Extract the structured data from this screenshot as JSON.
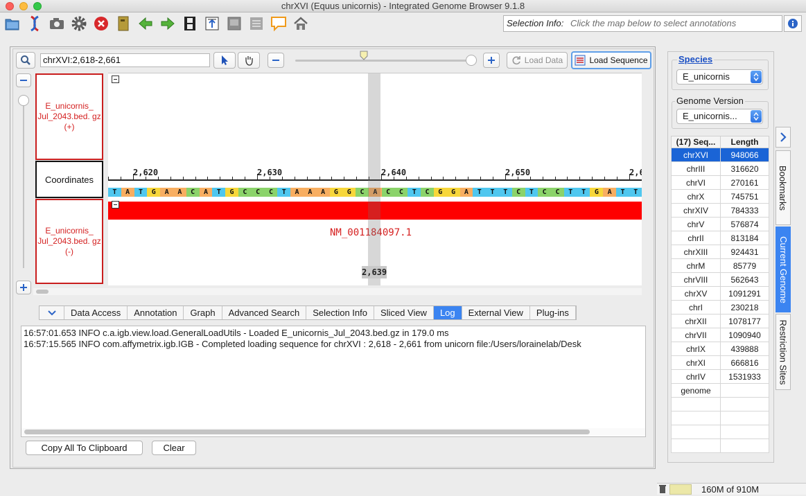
{
  "window": {
    "title": "chrXVI  (Equus unicornis) - Integrated Genome Browser 9.1.8"
  },
  "toolbar": {
    "icons": [
      "open-folder-icon",
      "dna-icon",
      "camera-icon",
      "gear-icon",
      "stop-icon",
      "book-icon",
      "back-arrow-icon",
      "forward-arrow-icon",
      "film-icon",
      "export-icon",
      "panel-icon",
      "panel-lines-icon",
      "speech-bubble-icon",
      "home-icon"
    ],
    "selection_info_label": "Selection Info:",
    "selection_info_placeholder": "Click the map below to select annotations"
  },
  "view": {
    "location": "chrXVI:2,618-2,661",
    "zoom_fraction": 0.38,
    "load_data_label": "Load Data",
    "load_sequence_label": "Load Sequence"
  },
  "tracks": {
    "plus_name": "E_unicornis_ Jul_2043.bed. gz (+)",
    "coordinates_name": "Coordinates",
    "minus_name": "E_unicornis_ Jul_2043.bed. gz (-)",
    "ruler_ticks": [
      "2,620",
      "2,630",
      "2,640",
      "2,650",
      "2,6"
    ],
    "sequence": "TATGAACATGCCCTAAAGGCACCTCGGATTTCTCCTTGATTAG",
    "feature_label": "NM_001184097.1",
    "cursor_position": "2,639"
  },
  "colors": {
    "A": "#f8ae61",
    "T": "#4fc7ef",
    "G": "#f7d73a",
    "C": "#8bd36a",
    "feature": "#fe0000",
    "accent": "#3b84f1"
  },
  "tabs": [
    {
      "label": "Data Access",
      "selected": false
    },
    {
      "label": "Annotation",
      "selected": false
    },
    {
      "label": "Graph",
      "selected": false
    },
    {
      "label": "Advanced Search",
      "selected": false
    },
    {
      "label": "Selection Info",
      "selected": false
    },
    {
      "label": "Sliced View",
      "selected": false
    },
    {
      "label": "Log",
      "selected": true
    },
    {
      "label": "External View",
      "selected": false
    },
    {
      "label": "Plug-ins",
      "selected": false
    }
  ],
  "log": {
    "lines": [
      "16:57:01.653 INFO  c.a.igb.view.load.GeneralLoadUtils - Loaded E_unicornis_Jul_2043.bed.gz in 179.0 ms",
      "16:57:15.565 INFO  com.affymetrix.igb.IGB - Completed loading sequence for chrXVI : 2,618 - 2,661 from unicorn file:/Users/lorainelab/Desk"
    ],
    "copy_label": "Copy All To Clipboard",
    "clear_label": "Clear"
  },
  "right_panel": {
    "species_title": "Species",
    "species_value": "E_unicornis",
    "genome_version_title": "Genome Version",
    "genome_version_value": "E_unicornis...",
    "table_headers": [
      "(17) Seq...",
      "Length"
    ],
    "rows": [
      [
        "chrXVI",
        "948066"
      ],
      [
        "chrIII",
        "316620"
      ],
      [
        "chrVI",
        "270161"
      ],
      [
        "chrX",
        "745751"
      ],
      [
        "chrXIV",
        "784333"
      ],
      [
        "chrV",
        "576874"
      ],
      [
        "chrII",
        "813184"
      ],
      [
        "chrXIII",
        "924431"
      ],
      [
        "chrM",
        "85779"
      ],
      [
        "chrVIII",
        "562643"
      ],
      [
        "chrXV",
        "1091291"
      ],
      [
        "chrI",
        "230218"
      ],
      [
        "chrXII",
        "1078177"
      ],
      [
        "chrVII",
        "1090940"
      ],
      [
        "chrIX",
        "439888"
      ],
      [
        "chrXI",
        "666816"
      ],
      [
        "chrIV",
        "1531933"
      ],
      [
        "genome",
        ""
      ],
      [
        "",
        ""
      ],
      [
        "",
        ""
      ],
      [
        "",
        ""
      ],
      [
        "",
        ""
      ]
    ],
    "side_tabs": [
      {
        "label": "Bookmarks",
        "selected": false
      },
      {
        "label": "Current Genome",
        "selected": true
      },
      {
        "label": "Restriction Sites",
        "selected": false
      }
    ]
  },
  "memory": {
    "text": "160M of 910M"
  }
}
